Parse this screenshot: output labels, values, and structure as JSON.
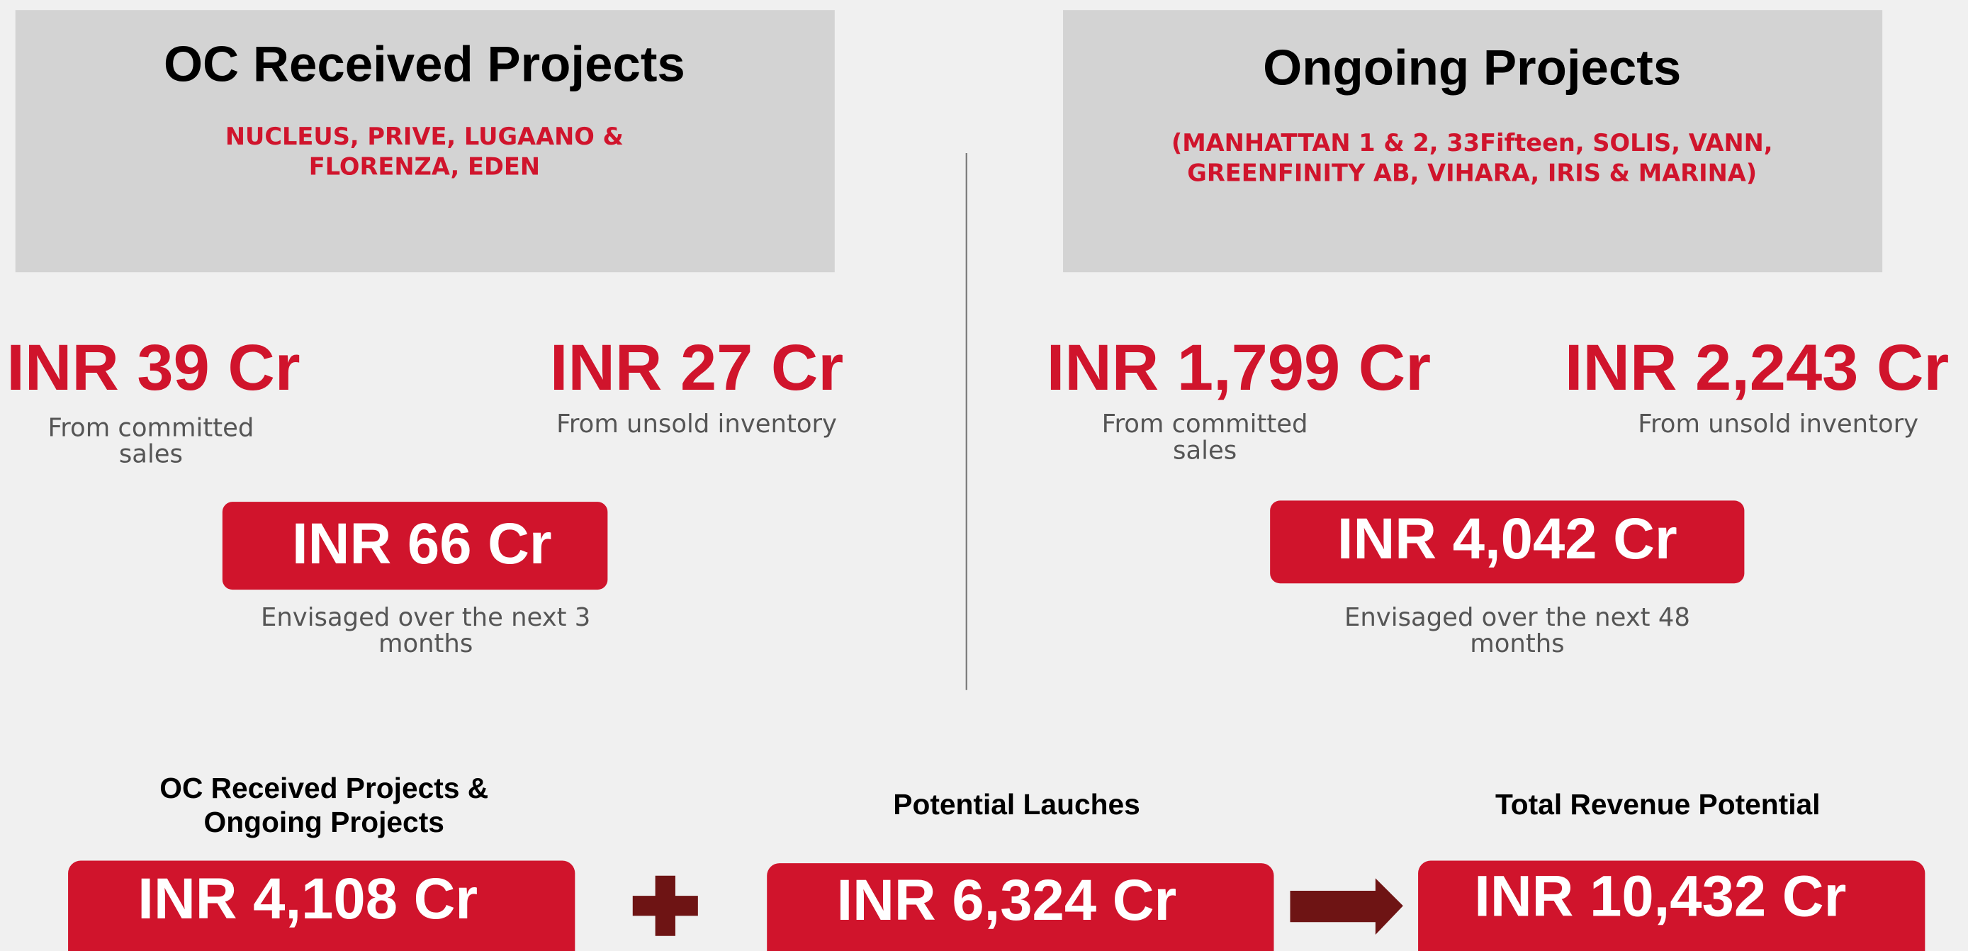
{
  "oc_received": {
    "title": "OC Received Projects",
    "subtitle_lines": [
      "NUCLEUS, PRIVE, LUGAANO &",
      "FLORENZA, EDEN"
    ],
    "committed": {
      "amount": "INR 39 Cr",
      "label_lines": [
        "From committed",
        "sales"
      ]
    },
    "unsold": {
      "amount": "INR 27 Cr",
      "label_lines": [
        "From unsold inventory"
      ]
    },
    "total": {
      "amount": "INR 66 Cr",
      "note_lines": [
        "Envisaged over the next 3",
        "months"
      ]
    }
  },
  "ongoing": {
    "title": "Ongoing Projects",
    "subtitle_lines": [
      "(MANHATTAN 1 & 2, 33Fifteen, SOLIS, VANN,",
      "GREENFINITY AB, VIHARA, IRIS & MARINA)"
    ],
    "committed": {
      "amount": "INR 1,799 Cr",
      "label_lines": [
        "From committed",
        "sales"
      ]
    },
    "unsold": {
      "amount": "INR 2,243 Cr",
      "label_lines": [
        "From unsold inventory"
      ]
    },
    "total": {
      "amount": "INR 4,042 Cr",
      "note_lines": [
        "Envisaged over the next 48",
        "months"
      ]
    }
  },
  "summary": [
    {
      "title_lines": [
        "OC Received Projects &",
        "Ongoing Projects"
      ],
      "amount": "INR 4,108 Cr"
    },
    {
      "title_lines": [
        "Potential Lauches"
      ],
      "amount": "INR 6,324 Cr"
    },
    {
      "title_lines": [
        "Total Revenue Potential"
      ],
      "amount": "INR 10,432 Cr"
    }
  ]
}
